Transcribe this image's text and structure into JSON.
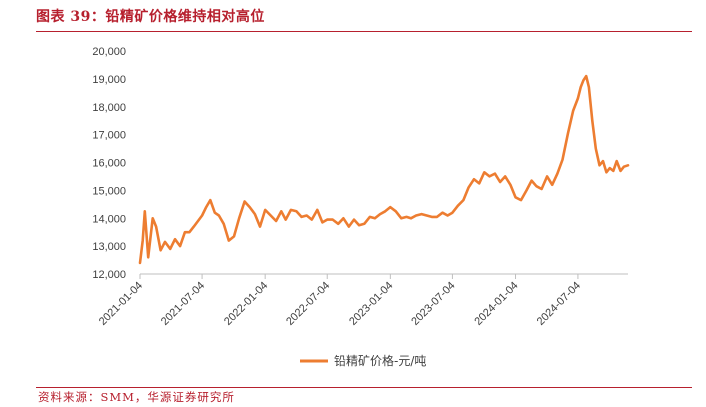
{
  "figure": {
    "title": "图表 39：铅精矿价格维持相对高位",
    "source": "资料来源：SMM，华源证券研究所",
    "accent_color": "#b7202e"
  },
  "chart_data": {
    "type": "line",
    "title": "",
    "xlabel": "",
    "ylabel": "",
    "ylim": [
      12000,
      20000
    ],
    "yticks": [
      12000,
      13000,
      14000,
      15000,
      16000,
      17000,
      18000,
      19000,
      20000
    ],
    "ytick_labels": [
      "12,000",
      "13,000",
      "14,000",
      "15,000",
      "16,000",
      "17,000",
      "18,000",
      "19,000",
      "20,000"
    ],
    "xlim": [
      "2021-01-04",
      "2024-11-27"
    ],
    "xticks": [
      "2021-01-04",
      "2021-07-04",
      "2022-01-04",
      "2022-07-04",
      "2023-01-04",
      "2023-07-04",
      "2024-01-04",
      "2024-07-04"
    ],
    "grid": false,
    "legend_position": "bottom",
    "series": [
      {
        "name": "铅精矿价格-元/吨",
        "color": "#ed7d31",
        "x": [
          "2021-01-04",
          "2021-01-12",
          "2021-01-18",
          "2021-01-28",
          "2021-02-10",
          "2021-02-20",
          "2021-03-05",
          "2021-03-18",
          "2021-04-02",
          "2021-04-16",
          "2021-05-01",
          "2021-05-15",
          "2021-05-28",
          "2021-06-10",
          "2021-06-22",
          "2021-07-04",
          "2021-07-16",
          "2021-07-28",
          "2021-08-10",
          "2021-08-22",
          "2021-09-05",
          "2021-09-20",
          "2021-10-05",
          "2021-10-20",
          "2021-11-05",
          "2021-11-20",
          "2021-12-05",
          "2021-12-20",
          "2022-01-04",
          "2022-01-20",
          "2022-02-05",
          "2022-02-20",
          "2022-03-05",
          "2022-03-20",
          "2022-04-05",
          "2022-04-20",
          "2022-05-05",
          "2022-05-20",
          "2022-06-05",
          "2022-06-20",
          "2022-07-04",
          "2022-07-20",
          "2022-08-05",
          "2022-08-20",
          "2022-09-05",
          "2022-09-20",
          "2022-10-05",
          "2022-10-20",
          "2022-11-05",
          "2022-11-20",
          "2022-12-05",
          "2022-12-20",
          "2023-01-04",
          "2023-01-20",
          "2023-02-05",
          "2023-02-20",
          "2023-03-05",
          "2023-03-20",
          "2023-04-05",
          "2023-04-20",
          "2023-05-05",
          "2023-05-20",
          "2023-06-05",
          "2023-06-20",
          "2023-07-04",
          "2023-07-20",
          "2023-08-05",
          "2023-08-20",
          "2023-09-05",
          "2023-09-20",
          "2023-10-05",
          "2023-10-20",
          "2023-11-05",
          "2023-11-20",
          "2023-12-05",
          "2023-12-20",
          "2024-01-04",
          "2024-01-20",
          "2024-02-05",
          "2024-02-20",
          "2024-03-05",
          "2024-03-20",
          "2024-04-05",
          "2024-04-20",
          "2024-05-05",
          "2024-05-20",
          "2024-06-05",
          "2024-06-20",
          "2024-07-04",
          "2024-07-12",
          "2024-07-20",
          "2024-07-28",
          "2024-08-05",
          "2024-08-15",
          "2024-08-25",
          "2024-09-05",
          "2024-09-15",
          "2024-09-25",
          "2024-10-05",
          "2024-10-15",
          "2024-10-25",
          "2024-11-05",
          "2024-11-15",
          "2024-11-27"
        ],
        "y": [
          12400,
          13200,
          14250,
          12600,
          14000,
          13700,
          12850,
          13150,
          12900,
          13250,
          13000,
          13500,
          13500,
          13700,
          13900,
          14100,
          14400,
          14650,
          14200,
          14100,
          13800,
          13200,
          13350,
          14000,
          14600,
          14400,
          14150,
          13700,
          14300,
          14100,
          13900,
          14250,
          13950,
          14300,
          14250,
          14050,
          14100,
          13950,
          14300,
          13850,
          13950,
          13950,
          13800,
          14000,
          13700,
          13950,
          13750,
          13800,
          14050,
          14000,
          14150,
          14250,
          14400,
          14250,
          14000,
          14050,
          14000,
          14100,
          14150,
          14100,
          14050,
          14050,
          14200,
          14100,
          14200,
          14450,
          14650,
          15100,
          15400,
          15250,
          15650,
          15500,
          15600,
          15300,
          15500,
          15200,
          14750,
          14650,
          15000,
          15350,
          15150,
          15050,
          15500,
          15200,
          15600,
          16100,
          17050,
          17850,
          18300,
          18700,
          18950,
          19100,
          18700,
          17500,
          16500,
          15900,
          16050,
          15650,
          15800,
          15700,
          16050,
          15700,
          15850,
          15900
        ]
      }
    ]
  }
}
